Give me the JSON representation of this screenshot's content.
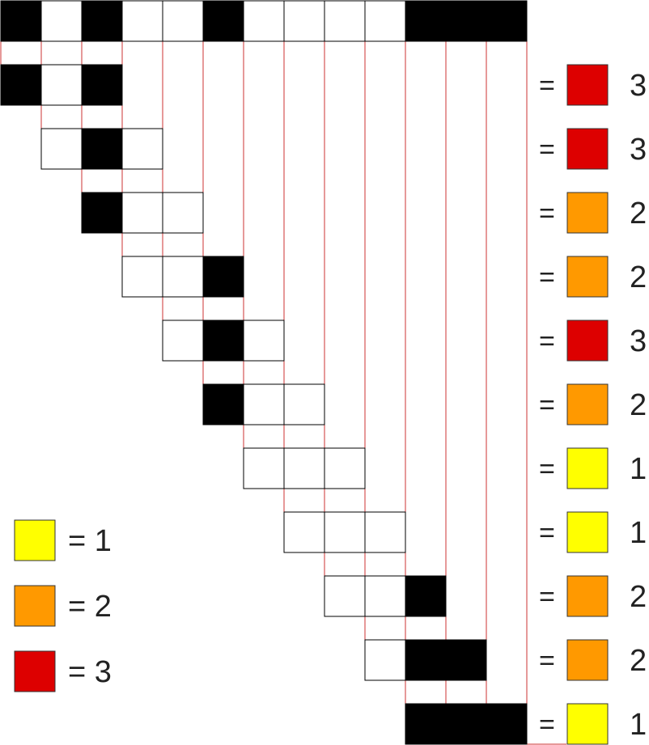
{
  "colors": {
    "1": "#ffff00",
    "2": "#ff9900",
    "3": "#dd0000",
    "filled_cell": "#000000",
    "empty_cell": "#ffffff",
    "connector_line": "#cc3333"
  },
  "equals_sign": "=",
  "top_row": [
    1,
    0,
    1,
    0,
    0,
    1,
    0,
    0,
    0,
    0,
    1,
    1,
    1
  ],
  "windows": [
    {
      "cells": [
        1,
        0,
        1
      ],
      "count": 2,
      "level": 3,
      "label": "3"
    },
    {
      "cells": [
        0,
        1,
        0
      ],
      "count": 1,
      "level": 3,
      "label": "3"
    },
    {
      "cells": [
        1,
        0,
        0
      ],
      "count": 1,
      "level": 2,
      "label": "2"
    },
    {
      "cells": [
        0,
        0,
        1
      ],
      "count": 1,
      "level": 2,
      "label": "2"
    },
    {
      "cells": [
        0,
        1,
        0
      ],
      "count": 1,
      "level": 3,
      "label": "3"
    },
    {
      "cells": [
        1,
        0,
        0
      ],
      "count": 1,
      "level": 2,
      "label": "2"
    },
    {
      "cells": [
        0,
        0,
        0
      ],
      "count": 0,
      "level": 1,
      "label": "1"
    },
    {
      "cells": [
        0,
        0,
        0
      ],
      "count": 0,
      "level": 1,
      "label": "1"
    },
    {
      "cells": [
        0,
        0,
        1
      ],
      "count": 1,
      "level": 2,
      "label": "2"
    },
    {
      "cells": [
        0,
        1,
        1
      ],
      "count": 2,
      "level": 2,
      "label": "2"
    },
    {
      "cells": [
        1,
        1,
        1
      ],
      "count": 3,
      "level": 1,
      "label": "1"
    }
  ],
  "legend": [
    {
      "level": 1,
      "label": "1"
    },
    {
      "level": 2,
      "label": "2"
    },
    {
      "level": 3,
      "label": "3"
    }
  ]
}
